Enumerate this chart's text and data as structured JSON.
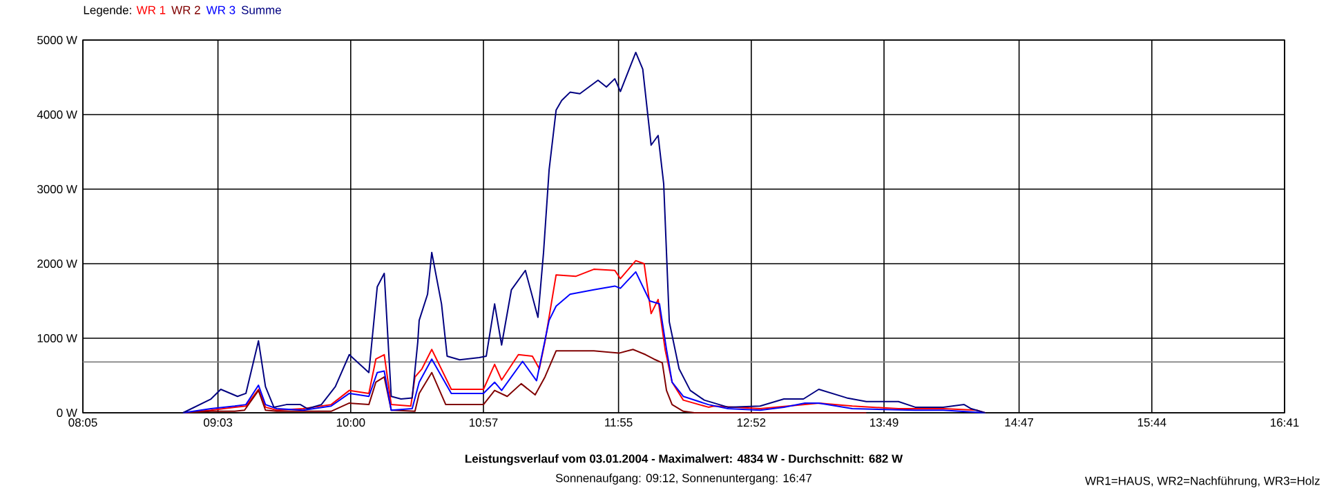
{
  "chart_data": {
    "type": "line",
    "title": "Leistungsverlauf vom 03.01.2004 - Maximalwert: 4834 W - Durchschnitt: 682 W",
    "annotations": [
      "Sonnenaufgang: 09:12, Sonnenuntergang: 16:47",
      "WR1=HAUS, WR2=Nachführung, WR3=Holz"
    ],
    "legend_title": "Legende:",
    "legend": "top left",
    "grid": true,
    "marker": "none",
    "line_style": "solid",
    "xlim": [
      8.0833,
      16.6833
    ],
    "xticks": [
      {
        "value": 8.0833,
        "label": "08:05"
      },
      {
        "value": 9.05,
        "label": "09:03"
      },
      {
        "value": 10.0,
        "label": "10:00"
      },
      {
        "value": 10.95,
        "label": "10:57"
      },
      {
        "value": 11.9167,
        "label": "11:55"
      },
      {
        "value": 12.8667,
        "label": "12:52"
      },
      {
        "value": 13.8167,
        "label": "13:49"
      },
      {
        "value": 14.7833,
        "label": "14:47"
      },
      {
        "value": 15.7333,
        "label": "15:44"
      },
      {
        "value": 16.6833,
        "label": "16:41"
      }
    ],
    "ylim": [
      0,
      5000
    ],
    "yticks": [
      {
        "value": 0,
        "label": "0 W"
      },
      {
        "value": 1000,
        "label": "1000 W"
      },
      {
        "value": 2000,
        "label": "2000 W"
      },
      {
        "value": 3000,
        "label": "3000 W"
      },
      {
        "value": 4000,
        "label": "4000 W"
      },
      {
        "value": 5000,
        "label": "5000 W"
      }
    ],
    "ref_lines": [
      {
        "axis": "y",
        "value": 682,
        "color": "#808080"
      }
    ],
    "series": [
      {
        "name": "WR 1",
        "color": "#ff0000",
        "x": [
          8.8,
          9.0,
          9.17,
          9.25,
          9.34,
          9.39,
          9.47,
          9.66,
          9.86,
          9.99,
          10.13,
          10.18,
          10.24,
          10.29,
          10.43,
          10.46,
          10.51,
          10.58,
          10.72,
          10.95,
          11.03,
          11.08,
          11.2,
          11.3,
          11.35,
          11.39,
          11.47,
          11.61,
          11.74,
          11.89,
          11.93,
          12.04,
          12.1,
          12.15,
          12.2,
          12.25,
          12.3,
          12.38,
          12.56,
          12.6,
          12.93,
          13.25,
          13.35,
          13.59,
          13.92,
          14.24,
          14.48,
          14.54
        ],
        "values": [
          0,
          35,
          75,
          90,
          315,
          75,
          35,
          55,
          110,
          300,
          260,
          720,
          780,
          110,
          90,
          480,
          590,
          850,
          315,
          315,
          650,
          440,
          780,
          760,
          590,
          950,
          1850,
          1830,
          1925,
          1910,
          1800,
          2040,
          2000,
          1330,
          1520,
          850,
          410,
          170,
          75,
          90,
          55,
          110,
          130,
          90,
          55,
          55,
          35,
          0
        ]
      },
      {
        "name": "WR 2",
        "color": "#800000",
        "x": [
          8.8,
          9.0,
          9.17,
          9.24,
          9.34,
          9.39,
          9.47,
          9.86,
          9.99,
          10.13,
          10.18,
          10.24,
          10.29,
          10.46,
          10.49,
          10.58,
          10.68,
          10.95,
          11.03,
          11.12,
          11.22,
          11.32,
          11.39,
          11.47,
          11.74,
          11.92,
          12.02,
          12.11,
          12.17,
          12.23,
          12.26,
          12.3,
          12.38,
          12.46,
          13.69
        ],
        "values": [
          0,
          20,
          20,
          35,
          300,
          35,
          20,
          20,
          130,
          110,
          410,
          480,
          35,
          20,
          260,
          540,
          110,
          110,
          300,
          220,
          390,
          240,
          480,
          830,
          830,
          800,
          850,
          780,
          720,
          670,
          300,
          110,
          20,
          0,
          0
        ]
      },
      {
        "name": "WR 3",
        "color": "#0000ff",
        "x": [
          8.8,
          9.0,
          9.17,
          9.25,
          9.34,
          9.39,
          9.47,
          9.66,
          9.86,
          9.99,
          10.13,
          10.19,
          10.24,
          10.29,
          10.44,
          10.49,
          10.58,
          10.72,
          10.95,
          11.03,
          11.08,
          11.23,
          11.33,
          11.42,
          11.47,
          11.57,
          11.74,
          11.89,
          11.93,
          12.04,
          12.14,
          12.21,
          12.26,
          12.3,
          12.38,
          12.56,
          12.7,
          12.93,
          13.1,
          13.25,
          13.35,
          13.59,
          14.04,
          14.24,
          14.54
        ],
        "values": [
          0,
          55,
          90,
          110,
          370,
          110,
          55,
          35,
          90,
          260,
          220,
          540,
          560,
          35,
          55,
          410,
          720,
          260,
          260,
          410,
          300,
          690,
          430,
          1240,
          1430,
          1590,
          1650,
          1700,
          1670,
          1890,
          1500,
          1460,
          850,
          410,
          220,
          110,
          55,
          35,
          75,
          130,
          130,
          55,
          35,
          35,
          0
        ]
      },
      {
        "name": "Summe",
        "color": "#000080",
        "x": [
          8.8,
          9.0,
          9.07,
          9.19,
          9.25,
          9.34,
          9.39,
          9.45,
          9.54,
          9.64,
          9.69,
          9.79,
          9.89,
          9.99,
          10.03,
          10.13,
          10.19,
          10.24,
          10.29,
          10.36,
          10.44,
          10.48,
          10.49,
          10.55,
          10.58,
          10.65,
          10.69,
          10.78,
          10.92,
          10.97,
          11.03,
          11.08,
          11.15,
          11.25,
          11.34,
          11.38,
          11.42,
          11.47,
          11.51,
          11.57,
          11.64,
          11.77,
          11.83,
          11.89,
          11.93,
          12.04,
          12.09,
          12.15,
          12.2,
          12.24,
          12.28,
          12.35,
          12.43,
          12.53,
          12.7,
          12.93,
          13.1,
          13.24,
          13.35,
          13.55,
          13.69,
          13.92,
          14.04,
          14.24,
          14.39,
          14.44,
          14.54
        ],
        "values": [
          0,
          185,
          315,
          220,
          260,
          965,
          350,
          75,
          110,
          110,
          55,
          110,
          350,
          780,
          710,
          540,
          1690,
          1870,
          220,
          185,
          200,
          950,
          1240,
          1590,
          2150,
          1460,
          760,
          710,
          740,
          760,
          1460,
          910,
          1650,
          1910,
          1280,
          2150,
          3260,
          4060,
          4190,
          4300,
          4280,
          4460,
          4370,
          4480,
          4310,
          4834,
          4610,
          3590,
          3720,
          3070,
          1220,
          590,
          300,
          170,
          75,
          90,
          185,
          185,
          315,
          200,
          150,
          150,
          75,
          75,
          110,
          55,
          0
        ]
      }
    ]
  }
}
